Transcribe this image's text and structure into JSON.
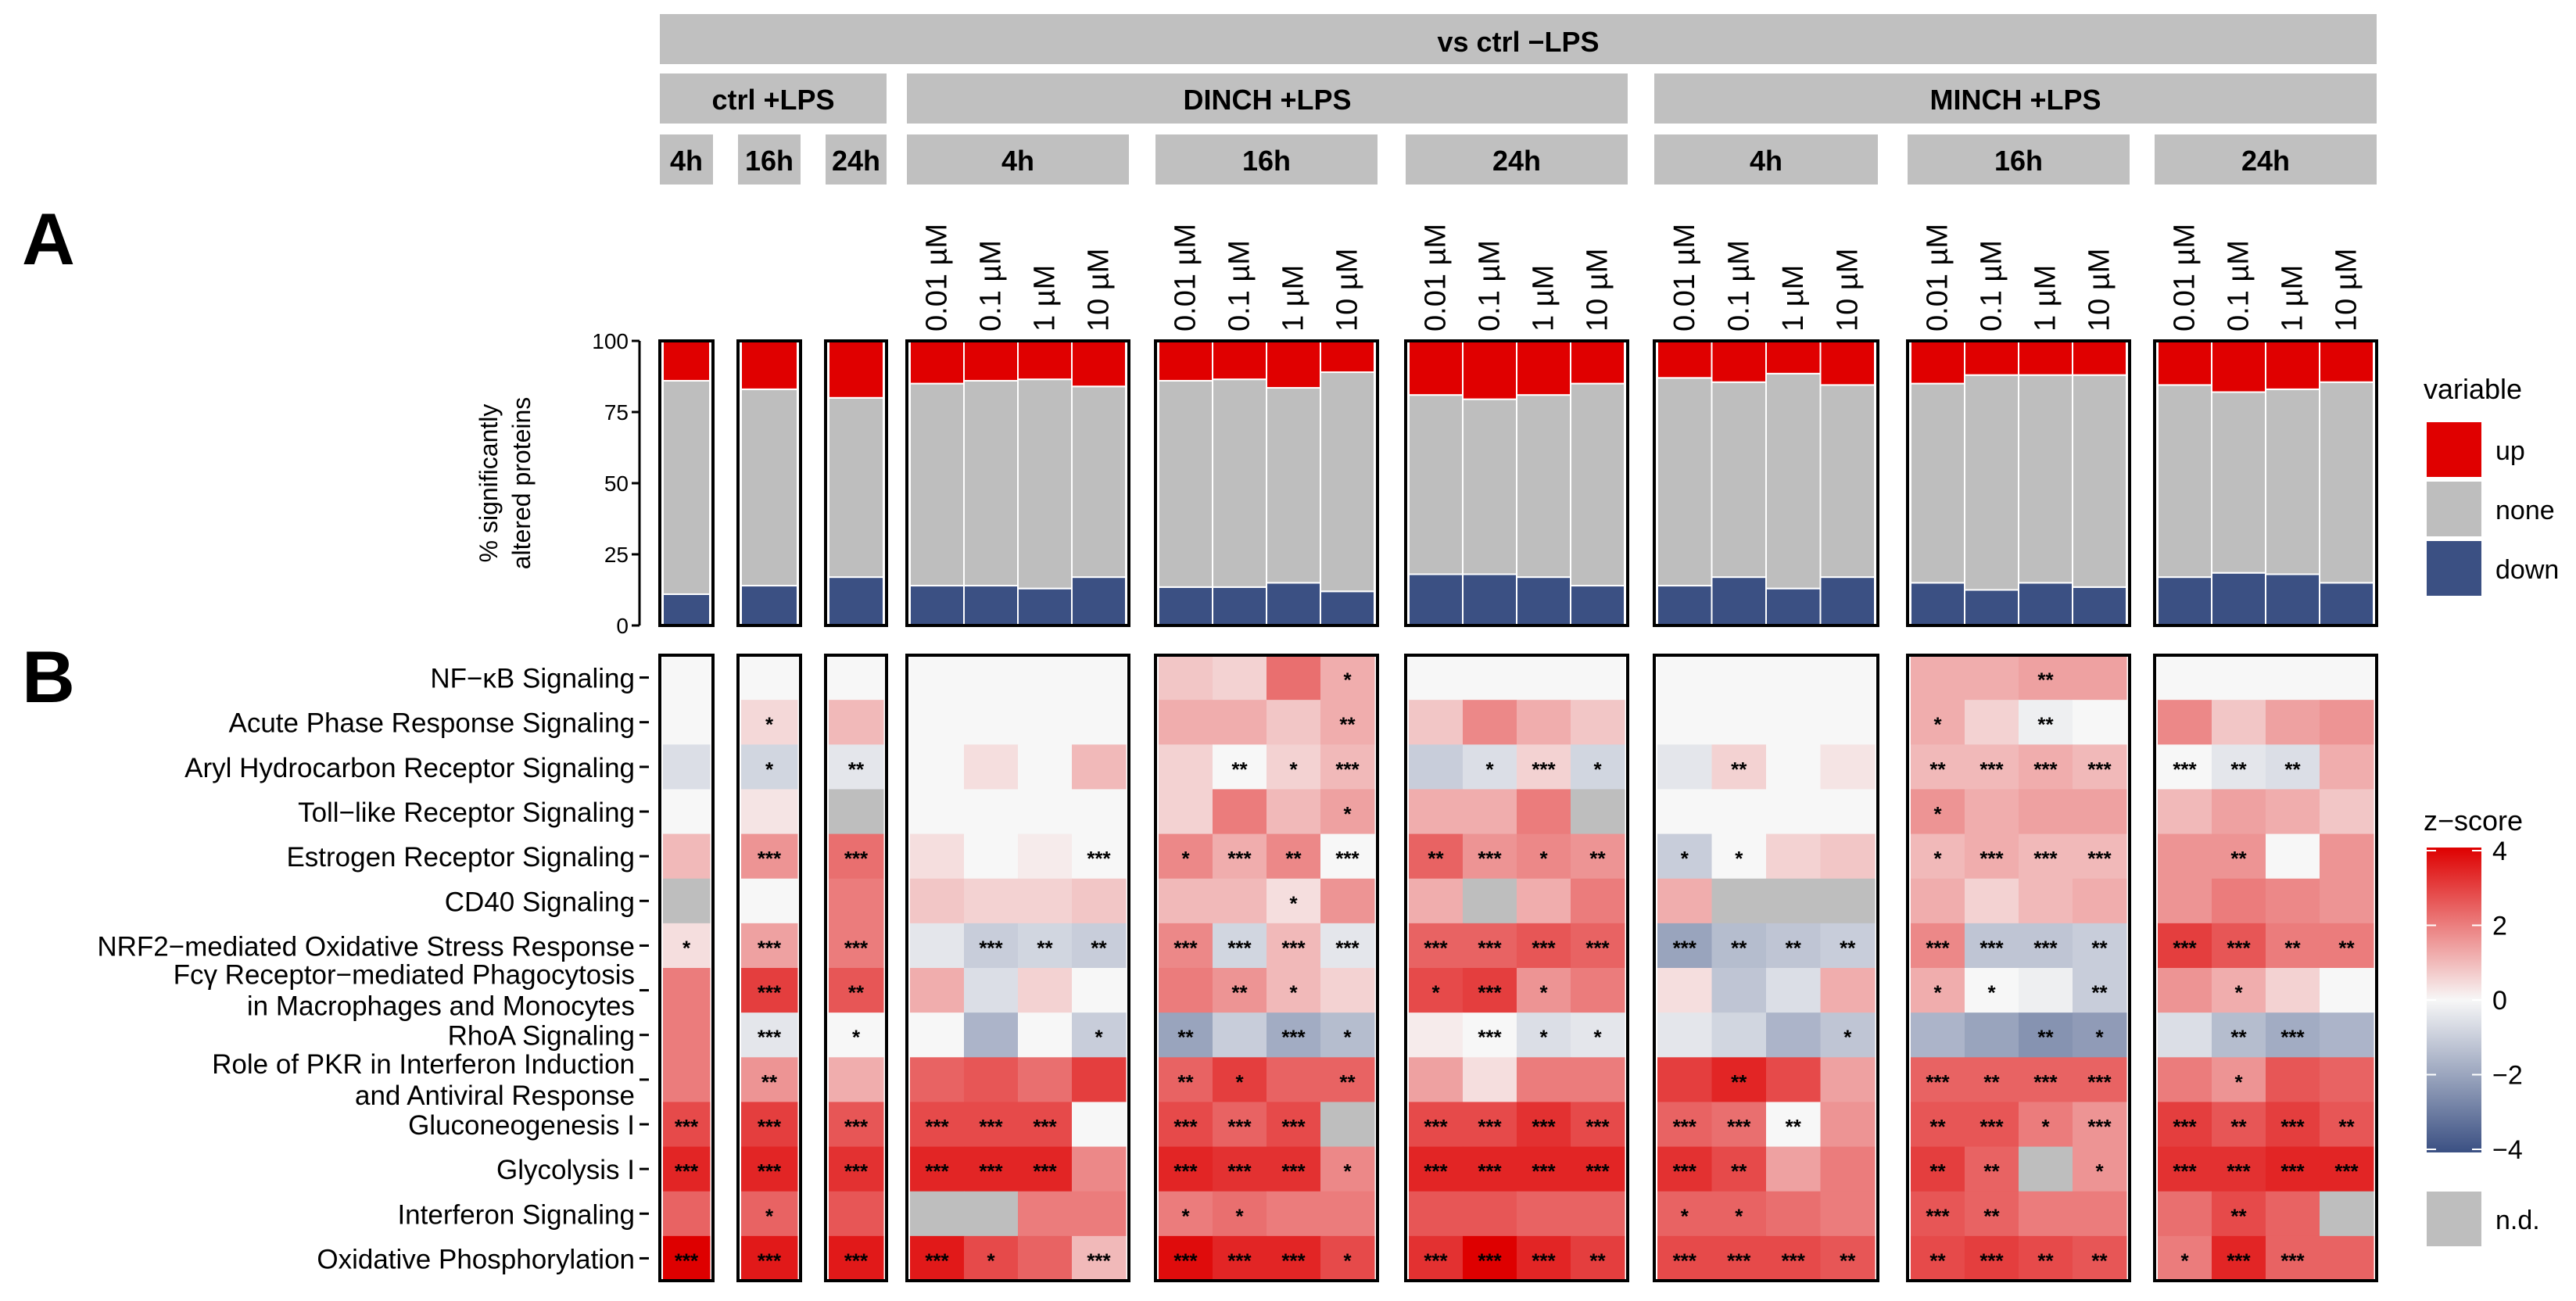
{
  "panel_labels": [
    "A",
    "B"
  ],
  "header": {
    "top": "vs ctrl −LPS",
    "groups": [
      "ctrl +LPS",
      "DINCH +LPS",
      "MINCH +LPS"
    ],
    "times": [
      "4h",
      "16h",
      "24h"
    ]
  },
  "concentrations": [
    "0.01 µM",
    "0.1 µM",
    "1 µM",
    "10 µM"
  ],
  "legend_variable": {
    "title": "variable",
    "items": [
      {
        "label": "up",
        "color": "#e00000"
      },
      {
        "label": "none",
        "color": "#bebebe"
      },
      {
        "label": "down",
        "color": "#3b5083"
      }
    ]
  },
  "legend_zscore": {
    "title": "z−score",
    "ticks": [
      "4",
      "2",
      "0",
      "−2",
      "−4"
    ],
    "nd_label": "n.d.",
    "nd_color": "#bebebe"
  },
  "chart_data": [
    {
      "type": "bar",
      "stacked": true,
      "ylabel": "% significantly\naltered proteins",
      "ylim": [
        0,
        100
      ],
      "yticks": [
        "0",
        "25",
        "50",
        "75",
        "100"
      ],
      "categories": [
        "ctrl +LPS 4h",
        "ctrl +LPS 16h",
        "ctrl +LPS 24h",
        "DINCH +LPS 4h 0.01 µM",
        "DINCH +LPS 4h 0.1 µM",
        "DINCH +LPS 4h 1 µM",
        "DINCH +LPS 4h 10 µM",
        "DINCH +LPS 16h 0.01 µM",
        "DINCH +LPS 16h 0.1 µM",
        "DINCH +LPS 16h 1 µM",
        "DINCH +LPS 16h 10 µM",
        "DINCH +LPS 24h 0.01 µM",
        "DINCH +LPS 24h 0.1 µM",
        "DINCH +LPS 24h 1 µM",
        "DINCH +LPS 24h 10 µM",
        "MINCH +LPS 4h 0.01 µM",
        "MINCH +LPS 4h 0.1 µM",
        "MINCH +LPS 4h 1 µM",
        "MINCH +LPS 4h 10 µM",
        "MINCH +LPS 16h 0.01 µM",
        "MINCH +LPS 16h 0.1 µM",
        "MINCH +LPS 16h 1 µM",
        "MINCH +LPS 16h 10 µM",
        "MINCH +LPS 24h 0.01 µM",
        "MINCH +LPS 24h 0.1 µM",
        "MINCH +LPS 24h 1 µM",
        "MINCH +LPS 24h 10 µM"
      ],
      "series": [
        {
          "name": "down",
          "values": [
            11,
            14,
            17,
            14,
            14,
            13,
            17,
            13.5,
            13.5,
            15,
            12,
            18,
            18,
            17,
            14,
            14,
            17,
            13,
            17,
            15,
            12.5,
            15,
            13.5,
            17,
            18.5,
            18,
            15
          ]
        },
        {
          "name": "none",
          "values": [
            75,
            69,
            63,
            71,
            72,
            73.5,
            67,
            72.5,
            73,
            68.5,
            77,
            63,
            61.5,
            64,
            71,
            73,
            68.5,
            75.5,
            67.5,
            70,
            75.5,
            73,
            74.5,
            67.5,
            63.5,
            65,
            70.5
          ]
        },
        {
          "name": "up",
          "values": [
            14,
            17,
            20,
            15,
            14,
            13.5,
            16,
            14,
            13.5,
            16.5,
            11,
            19,
            20.5,
            19,
            15,
            13,
            14.5,
            11.5,
            15.5,
            15,
            12,
            12,
            12,
            15.5,
            18,
            17,
            14.5
          ]
        }
      ],
      "legend": "right"
    },
    {
      "type": "heatmap",
      "rows": [
        "NF−κB Signaling",
        "Acute Phase Response Signaling",
        "Aryl Hydrocarbon Receptor Signaling",
        "Toll−like Receptor Signaling",
        "Estrogen Receptor Signaling",
        "CD40 Signaling",
        "NRF2−mediated Oxidative Stress Response",
        "Fcγ Receptor−mediated Phagocytosis\nin Macrophages and Monocytes",
        "RhoA Signaling",
        "Role of PKR in Interferon Induction\nand Antiviral Response",
        "Gluconeogenesis I",
        "Glycolysis I",
        "Interferon Signaling",
        "Oxidative Phosphorylation"
      ],
      "color_range": [
        -4,
        4
      ],
      "values": [
        [
          0,
          0,
          0,
          0,
          0,
          0,
          0,
          0.8,
          0.6,
          2.2,
          1.2,
          0,
          0,
          0,
          0,
          0,
          0,
          0,
          0,
          1.2,
          1.2,
          1.4,
          1.4,
          0,
          0,
          0,
          0
        ],
        [
          0,
          0.5,
          1.0,
          0,
          0,
          0,
          0,
          1.2,
          1.2,
          0.8,
          1.2,
          0.8,
          1.8,
          1.2,
          0.8,
          0,
          0,
          0,
          0,
          1.2,
          0.6,
          -0.2,
          0,
          1.8,
          0.8,
          1.4,
          1.6
        ],
        [
          -0.6,
          -0.8,
          -0.4,
          0,
          0.4,
          0,
          1.0,
          0.6,
          0,
          0.6,
          1.0,
          -1.0,
          -0.6,
          0.6,
          -0.8,
          -0.4,
          0.6,
          0,
          0.3,
          1.0,
          1.0,
          1.2,
          1.0,
          0,
          -0.4,
          -0.6,
          1.2
        ],
        [
          0,
          0.3,
          null,
          0,
          0,
          0,
          0,
          0.6,
          2.0,
          1.0,
          1.4,
          1.2,
          1.2,
          2.0,
          null,
          0,
          0,
          0,
          0,
          1.6,
          1.2,
          1.4,
          1.4,
          1.0,
          1.4,
          1.2,
          0.8
        ],
        [
          1.0,
          1.6,
          2.2,
          0.4,
          0,
          0.2,
          0,
          1.8,
          1.2,
          1.8,
          0,
          2.4,
          1.6,
          1.8,
          1.6,
          -1.0,
          0,
          0.6,
          0.8,
          1.0,
          1.2,
          1.0,
          1.0,
          1.6,
          1.6,
          0,
          1.6
        ],
        [
          null,
          0,
          2.0,
          0.8,
          0.6,
          0.6,
          0.8,
          1.0,
          1.0,
          0.4,
          1.6,
          1.2,
          null,
          1.2,
          2.0,
          1.2,
          null,
          null,
          null,
          1.2,
          0.6,
          1.0,
          1.2,
          1.6,
          2.0,
          1.8,
          1.6
        ],
        [
          0.4,
          1.4,
          2.0,
          -0.4,
          -1.0,
          -0.8,
          -1.0,
          1.8,
          -0.8,
          1.0,
          -0.4,
          2.4,
          2.4,
          2.6,
          2.4,
          -2.0,
          -1.4,
          -1.2,
          -1.0,
          1.8,
          -1.2,
          -1.2,
          -1.0,
          3.0,
          2.6,
          2.0,
          2.0
        ],
        [
          2.0,
          3.0,
          2.6,
          1.2,
          -0.6,
          0.6,
          0,
          2.0,
          1.6,
          1.0,
          0.6,
          2.8,
          3.0,
          1.6,
          2.0,
          0.4,
          -1.2,
          -0.6,
          1.2,
          1.2,
          0,
          -0.2,
          -1.0,
          1.6,
          1.2,
          0.6,
          0
        ],
        [
          2.0,
          -0.4,
          0,
          0,
          -1.6,
          0,
          -1.0,
          -2.0,
          -1.0,
          -1.8,
          -1.4,
          0.2,
          0,
          -0.6,
          -0.4,
          -0.4,
          -0.8,
          -1.6,
          -1.2,
          -1.6,
          -2.0,
          -2.4,
          -2.2,
          -0.6,
          -1.4,
          -1.8,
          -1.6
        ],
        [
          2.0,
          1.6,
          1.2,
          2.4,
          2.6,
          2.2,
          3.0,
          2.4,
          3.0,
          2.4,
          2.4,
          1.4,
          0.4,
          2.0,
          2.0,
          3.0,
          3.4,
          2.8,
          1.4,
          2.4,
          2.4,
          2.4,
          2.4,
          2.0,
          1.6,
          2.6,
          2.4
        ],
        [
          2.8,
          3.0,
          2.6,
          2.8,
          2.8,
          2.8,
          0,
          2.8,
          2.4,
          2.8,
          null,
          2.8,
          2.8,
          3.2,
          2.8,
          2.4,
          2.2,
          0,
          1.6,
          2.6,
          2.6,
          2.0,
          1.6,
          3.0,
          2.6,
          3.0,
          2.6
        ],
        [
          3.4,
          3.4,
          3.2,
          3.4,
          3.4,
          3.4,
          1.8,
          3.4,
          3.2,
          3.2,
          1.8,
          3.4,
          3.4,
          3.4,
          3.4,
          3.2,
          2.8,
          1.4,
          2.0,
          3.0,
          2.4,
          null,
          1.6,
          3.2,
          3.2,
          3.4,
          3.4
        ],
        [
          2.4,
          2.4,
          2.6,
          null,
          null,
          2.0,
          2.0,
          2.0,
          2.2,
          2.0,
          2.0,
          2.6,
          2.6,
          2.4,
          2.4,
          2.4,
          2.4,
          2.2,
          2.0,
          2.6,
          2.4,
          2.0,
          2.0,
          2.2,
          2.8,
          2.4,
          null
        ],
        [
          4.0,
          3.6,
          3.6,
          3.6,
          2.8,
          2.4,
          1.0,
          3.8,
          3.4,
          3.4,
          2.8,
          3.2,
          4.0,
          3.4,
          3.0,
          2.8,
          2.8,
          2.8,
          2.6,
          2.8,
          3.0,
          2.8,
          2.6,
          2.0,
          3.4,
          2.4,
          2.4
        ]
      ],
      "significance": [
        [
          "",
          "",
          "",
          "",
          "",
          "",
          "",
          "",
          "",
          "",
          "*",
          "",
          "",
          "",
          "",
          "",
          "",
          "",
          "",
          "",
          "",
          "**",
          "",
          "",
          "",
          "",
          ""
        ],
        [
          "",
          "*",
          "",
          "",
          "",
          "",
          "",
          "",
          "",
          "",
          "**",
          "",
          "",
          "",
          "",
          "",
          "",
          "",
          "",
          "*",
          "",
          "**",
          "",
          "",
          "",
          "",
          ""
        ],
        [
          "",
          "*",
          "**",
          "",
          "",
          "",
          "",
          "",
          "**",
          "*",
          "***",
          "",
          "*",
          "***",
          "*",
          "",
          "**",
          "",
          "",
          "**",
          "***",
          "***",
          "***",
          "***",
          "**",
          "**",
          ""
        ],
        [
          "",
          "",
          "",
          "",
          "",
          "",
          "",
          "",
          "",
          "",
          "*",
          "",
          "",
          "",
          "",
          "",
          "",
          "",
          "",
          "*",
          "",
          "",
          "",
          "",
          "",
          "",
          ""
        ],
        [
          "",
          "***",
          "***",
          "",
          "",
          "",
          "***",
          "*",
          "***",
          "**",
          "***",
          "**",
          "***",
          "*",
          "**",
          "*",
          "*",
          "",
          "",
          "*",
          "***",
          "***",
          "***",
          "",
          "**",
          "",
          ""
        ],
        [
          "",
          "",
          "",
          "",
          "",
          "",
          "",
          "",
          "",
          "*",
          "",
          "",
          "",
          "",
          "",
          "",
          "",
          "",
          "",
          "",
          "",
          "",
          "",
          "",
          "",
          "",
          ""
        ],
        [
          "*",
          "***",
          "***",
          "",
          "***",
          "**",
          "**",
          "***",
          "***",
          "***",
          "***",
          "***",
          "***",
          "***",
          "***",
          "***",
          "**",
          "**",
          "**",
          "***",
          "***",
          "***",
          "**",
          "***",
          "***",
          "**",
          "**"
        ],
        [
          "",
          "***",
          "**",
          "",
          "",
          "",
          "",
          "",
          "**",
          "*",
          "",
          "*",
          "***",
          "*",
          "",
          "",
          "",
          "",
          "",
          "*",
          "*",
          "",
          "**",
          "",
          "*",
          "",
          ""
        ],
        [
          "",
          "***",
          "*",
          "",
          "",
          "",
          "*",
          "**",
          "",
          "***",
          "*",
          "",
          "***",
          "*",
          "*",
          "",
          "",
          "",
          "*",
          "",
          "",
          "**",
          "*",
          "",
          "**",
          "***",
          ""
        ],
        [
          "",
          "**",
          "",
          "",
          "",
          "",
          "",
          "**",
          "*",
          "",
          "**",
          "",
          "",
          "",
          "",
          "",
          "**",
          "",
          "",
          "***",
          "**",
          "***",
          "***",
          "",
          "*",
          "",
          ""
        ],
        [
          "***",
          "***",
          "***",
          "***",
          "***",
          "***",
          "",
          "***",
          "***",
          "***",
          "",
          "***",
          "***",
          "***",
          "***",
          "***",
          "***",
          "**",
          "",
          "**",
          "***",
          "*",
          "***",
          "***",
          "**",
          "***",
          "**"
        ],
        [
          "***",
          "***",
          "***",
          "***",
          "***",
          "***",
          "",
          "***",
          "***",
          "***",
          "*",
          "***",
          "***",
          "***",
          "***",
          "***",
          "**",
          "",
          "",
          "**",
          "**",
          "",
          "*",
          "***",
          "***",
          "***",
          "***"
        ],
        [
          "",
          "*",
          "",
          "",
          "",
          "",
          "",
          "*",
          "*",
          "",
          "",
          "",
          "",
          "",
          "",
          "*",
          "*",
          "",
          "",
          "***",
          "**",
          "",
          "",
          "",
          "**",
          "",
          ""
        ],
        [
          "***",
          "***",
          "***",
          "***",
          "*",
          "",
          "***",
          "***",
          "***",
          "***",
          "*",
          "***",
          "***",
          "***",
          "**",
          "***",
          "***",
          "***",
          "**",
          "**",
          "***",
          "**",
          "**",
          "*",
          "***",
          "***",
          ""
        ]
      ]
    }
  ]
}
